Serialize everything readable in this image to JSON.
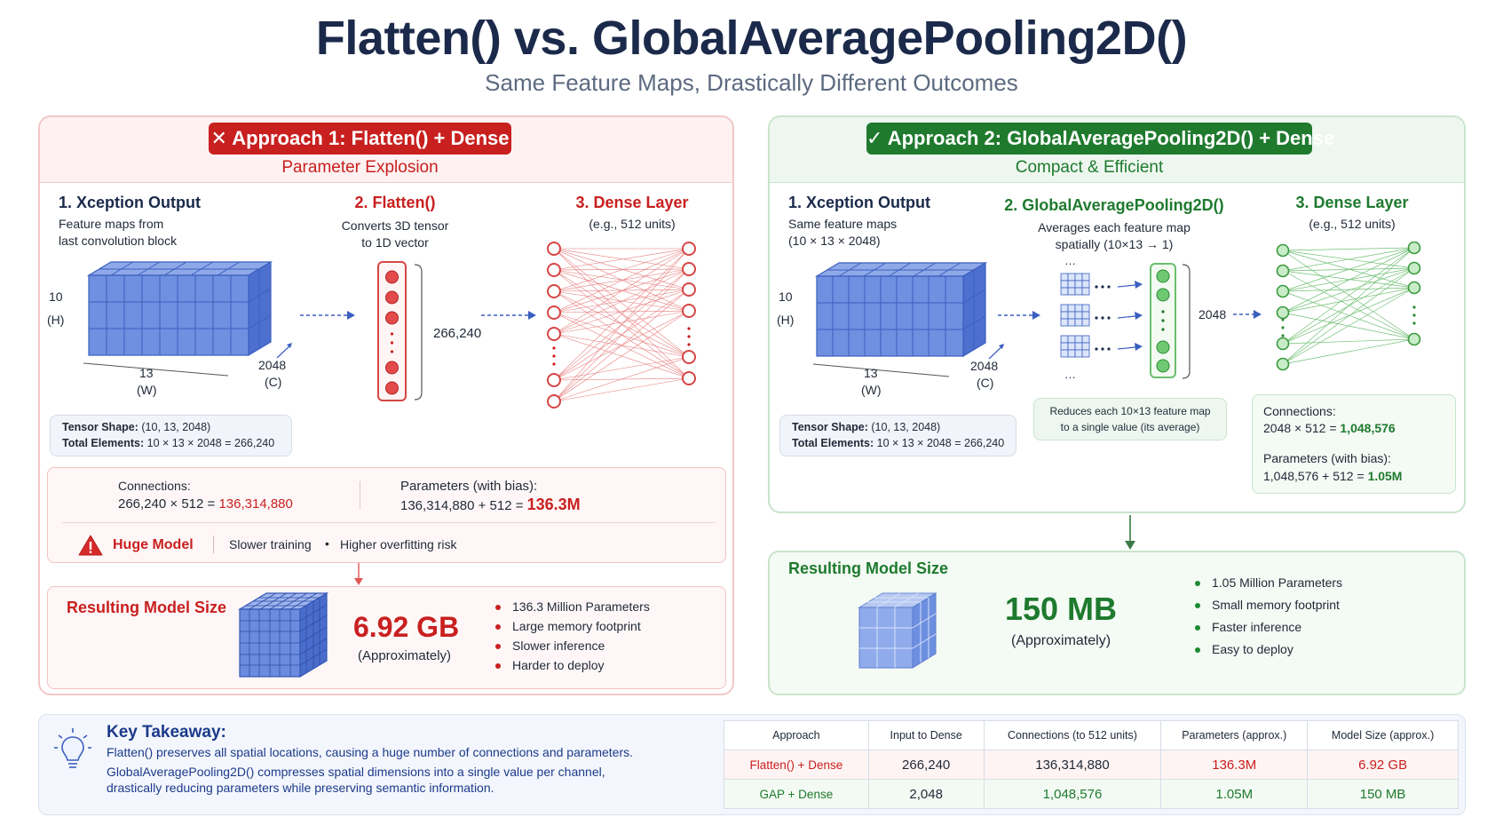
{
  "title": "Flatten() vs. GlobalAveragePooling2D()",
  "subtitle": "Same Feature Maps, Drastically Different Outcomes",
  "colors": {
    "red": "#c8201f",
    "green": "#1f7a2e",
    "navy": "#1b2a4a",
    "blue": "#5f82d6"
  },
  "left": {
    "badge_icon": "x-icon",
    "badge": "Approach 1: Flatten() + Dense",
    "tagline": "Parameter Explosion",
    "step1": {
      "title": "1. Xception Output",
      "desc1": "Feature maps from",
      "desc2": "last convolution block"
    },
    "step2": {
      "title": "2. Flatten()",
      "desc1": "Converts 3D tensor",
      "desc2": "to 1D vector",
      "size": "266,240"
    },
    "step3": {
      "title": "3. Dense Layer",
      "desc": "(e.g., 512 units)"
    },
    "dims": {
      "h": "10",
      "h_label": "(H)",
      "w": "13",
      "w_label": "(W)",
      "c": "2048",
      "c_label": "(C)"
    },
    "tensor": {
      "shape_label": "Tensor Shape:",
      "shape_value": "(10, 13, 2048)",
      "total_label": "Total Elements:",
      "total_value": "10 × 13 × 2048 = 266,240"
    },
    "connections": {
      "label": "Connections:",
      "formula": "266,240 × 512 = ",
      "result": "136,314,880"
    },
    "parameters": {
      "label": "Parameters (with bias):",
      "formula": "136,314,880 + 512 = ",
      "result": "136.3M"
    },
    "warning": {
      "icon": "warning-icon",
      "label": "Huge Model",
      "item1": "Slower training",
      "item2": "Higher overfitting risk"
    },
    "result": {
      "title": "Resulting Model Size",
      "size": "6.92 GB",
      "approx": "(Approximately)",
      "bullets": [
        "136.3 Million Parameters",
        "Large memory footprint",
        "Slower inference",
        "Harder to deploy"
      ]
    }
  },
  "right": {
    "badge_icon": "check-icon",
    "badge": "Approach 2: GlobalAveragePooling2D() + Dense",
    "tagline": "Compact & Efficient",
    "step1": {
      "title": "1. Xception Output",
      "desc1": "Same feature maps",
      "desc2": "(10 × 13 × 2048)"
    },
    "step2": {
      "title": "2. GlobalAveragePooling2D()",
      "desc1": "Averages each feature map",
      "desc2": "spatially (10×13 → 1)",
      "size": "2048"
    },
    "step3": {
      "title": "3. Dense Layer",
      "desc": "(e.g., 512 units)"
    },
    "dims": {
      "h": "10",
      "h_label": "(H)",
      "w": "13",
      "w_label": "(W)",
      "c": "2048",
      "c_label": "(C)"
    },
    "tensor": {
      "shape_label": "Tensor Shape:",
      "shape_value": "(10, 13, 2048)",
      "total_label": "Total Elements:",
      "total_value": "10 × 13 × 2048 = 266,240"
    },
    "reduce_note1": "Reduces each 10×13 feature map",
    "reduce_note2": "to a single value (its average)",
    "connections": {
      "label": "Connections:",
      "formula": "2048 × 512 = ",
      "result": "1,048,576"
    },
    "parameters": {
      "label": "Parameters (with bias):",
      "formula": "1,048,576 + 512 = ",
      "result": "1.05M"
    },
    "result": {
      "title": "Resulting Model Size",
      "size": "150 MB",
      "approx": "(Approximately)",
      "bullets": [
        "1.05 Million Parameters",
        "Small memory footprint",
        "Faster inference",
        "Easy to deploy"
      ]
    }
  },
  "takeaway": {
    "icon": "lightbulb-icon",
    "title": "Key Takeaway:",
    "line1": "Flatten() preserves all spatial locations, causing a huge number of connections and parameters.",
    "line2": "GlobalAveragePooling2D() compresses spatial dimensions into a single value per channel,",
    "line3": "drastically reducing parameters while preserving semantic information."
  },
  "table": {
    "headers": [
      "Approach",
      "Input to Dense",
      "Connections (to 512 units)",
      "Parameters (approx.)",
      "Model Size (approx.)"
    ],
    "rows": [
      [
        "Flatten() + Dense",
        "266,240",
        "136,314,880",
        "136.3M",
        "6.92 GB"
      ],
      [
        "GAP + Dense",
        "2,048",
        "1,048,576",
        "1.05M",
        "150 MB"
      ]
    ]
  }
}
